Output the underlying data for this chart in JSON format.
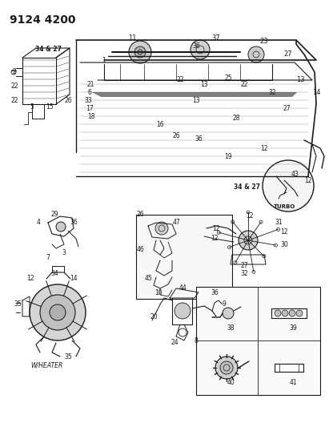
{
  "title": "9124 4200",
  "bg_color": "#ffffff",
  "line_color": "#1a1a1a",
  "title_fontsize": 10,
  "fig_width": 4.11,
  "fig_height": 5.33,
  "dpi": 100,
  "w_heater_label": "W/HEATER",
  "turbo_label": "TURBO"
}
